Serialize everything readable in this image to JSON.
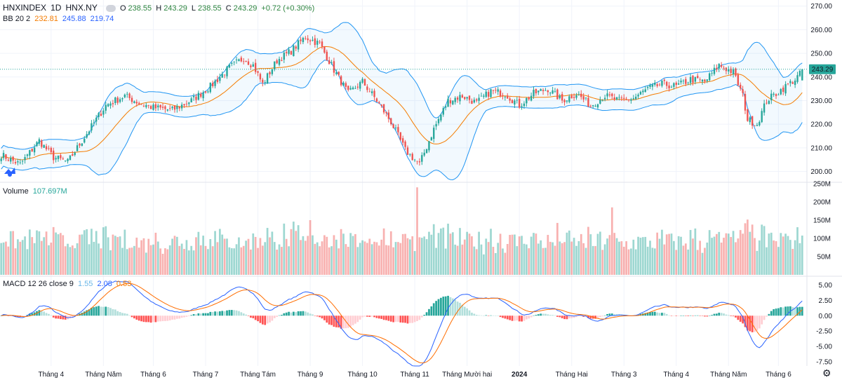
{
  "header": {
    "symbol": "HNXINDEX",
    "interval": "1D",
    "exchange": "HNX.NY",
    "open_label": "O",
    "open": "238.55",
    "high_label": "H",
    "high": "243.29",
    "low_label": "L",
    "low": "238.55",
    "close_label": "C",
    "close": "243.29",
    "change": "+0.72 (+0.30%)"
  },
  "bb_legend": {
    "name": "BB 20 2",
    "basis": "232.81",
    "upper": "245.88",
    "lower": "219.74"
  },
  "volume_legend": {
    "name": "Volume",
    "value": "107.697M"
  },
  "macd_legend": {
    "name": "MACD 12 26 close 9",
    "hist": "1.55",
    "macd": "2.08",
    "signal": "0.53"
  },
  "last_price_tag": "243.29",
  "colors": {
    "up": "#26a69a",
    "down": "#ef5350",
    "bb_basis": "#f57c00",
    "bb_band": "#2196f3",
    "macd_line": "#2962ff",
    "signal_line": "#ff6d00"
  },
  "chart_data": {
    "type": "candlestick",
    "title": "HNXINDEX 1D HNX.NY",
    "price_axis": {
      "ticks": [
        "270.00",
        "260.00",
        "250.00",
        "240.00",
        "230.00",
        "220.00",
        "210.00",
        "200.00"
      ],
      "ylim": [
        196,
        272
      ]
    },
    "volume_axis": {
      "ticks": [
        "250M",
        "200M",
        "150M",
        "100M",
        "50M"
      ],
      "ylim": [
        0,
        250
      ]
    },
    "macd_axis": {
      "ticks": [
        "5.00",
        "2.50",
        "0.00",
        "-2.50",
        "-5.00",
        "-7.50"
      ],
      "ylim": [
        -8.2,
        6.2
      ]
    },
    "time_axis": [
      "Tháng 4",
      "Tháng Năm",
      "Tháng 6",
      "Tháng 7",
      "Tháng Tám",
      "Tháng 9",
      "Tháng 10",
      "Tháng 11",
      "Tháng Mười hai",
      "2024",
      "Tháng Hai",
      "Tháng 3",
      "Tháng 4",
      "Tháng Năm",
      "Tháng 6"
    ],
    "price_path": [
      [
        0,
        207
      ],
      [
        8,
        203
      ],
      [
        16,
        213
      ],
      [
        22,
        206
      ],
      [
        28,
        204
      ],
      [
        36,
        216
      ],
      [
        44,
        228
      ],
      [
        52,
        232
      ],
      [
        58,
        229
      ],
      [
        64,
        227
      ],
      [
        72,
        226
      ],
      [
        80,
        230
      ],
      [
        88,
        236
      ],
      [
        96,
        244
      ],
      [
        102,
        248
      ],
      [
        106,
        245
      ],
      [
        110,
        237
      ],
      [
        116,
        247
      ],
      [
        122,
        251
      ],
      [
        128,
        257
      ],
      [
        134,
        254
      ],
      [
        140,
        243
      ],
      [
        146,
        233
      ],
      [
        152,
        238
      ],
      [
        158,
        230
      ],
      [
        164,
        221
      ],
      [
        170,
        209
      ],
      [
        176,
        203
      ],
      [
        182,
        218
      ],
      [
        188,
        230
      ],
      [
        194,
        232
      ],
      [
        200,
        229
      ],
      [
        206,
        234
      ],
      [
        212,
        233
      ],
      [
        218,
        228
      ],
      [
        224,
        233
      ],
      [
        230,
        235
      ],
      [
        236,
        230
      ],
      [
        242,
        233
      ],
      [
        248,
        228
      ],
      [
        254,
        232
      ],
      [
        260,
        230
      ],
      [
        266,
        231
      ],
      [
        272,
        235
      ],
      [
        278,
        237
      ],
      [
        284,
        236
      ],
      [
        290,
        239
      ],
      [
        296,
        238
      ],
      [
        302,
        245
      ],
      [
        308,
        242
      ],
      [
        312,
        232
      ],
      [
        314,
        222
      ],
      [
        318,
        220
      ],
      [
        322,
        230
      ],
      [
        330,
        236
      ],
      [
        334,
        239
      ],
      [
        338,
        243.29
      ]
    ],
    "total_bars": 338,
    "series": [
      {
        "name": "Close",
        "kind": "candles"
      },
      {
        "name": "BB basis",
        "value": 232.81
      },
      {
        "name": "BB upper",
        "value": 245.88
      },
      {
        "name": "BB lower",
        "value": 219.74
      },
      {
        "name": "Volume",
        "last": 107.697
      },
      {
        "name": "MACD",
        "last": 2.08
      },
      {
        "name": "Signal",
        "last": 0.53
      },
      {
        "name": "Histogram",
        "last": 1.55
      }
    ]
  }
}
